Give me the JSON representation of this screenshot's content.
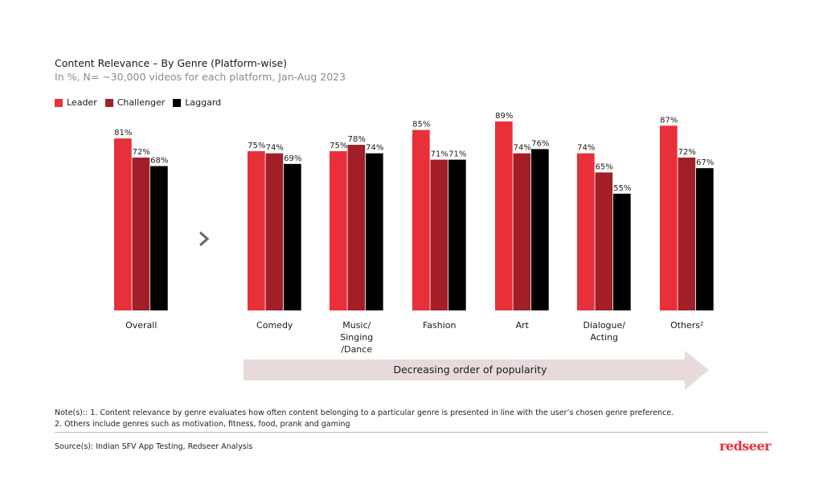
{
  "chart_data": {
    "type": "bar",
    "title": "Content Relevance – By Genre (Platform-wise)",
    "subtitle": "In %, N= ~30,000 videos for each platform, Jan-Aug 2023",
    "categories": [
      [
        "Overall"
      ],
      [
        "Comedy"
      ],
      [
        "Music/",
        "Singing",
        "/Dance"
      ],
      [
        "Fashion"
      ],
      [
        "Art"
      ],
      [
        "Dialogue/",
        "Acting"
      ],
      [
        "Others²"
      ]
    ],
    "series": [
      {
        "name": "Leader",
        "color": "#e8303a",
        "values": [
          81,
          75,
          75,
          85,
          89,
          74,
          87
        ]
      },
      {
        "name": "Challenger",
        "color": "#a21f27",
        "values": [
          72,
          74,
          78,
          71,
          74,
          65,
          72
        ]
      },
      {
        "name": "Laggard",
        "color": "#000000",
        "values": [
          68,
          69,
          74,
          71,
          76,
          55,
          67
        ]
      }
    ],
    "value_suffix": "%",
    "ylim": [
      0,
      100
    ],
    "grid": false,
    "legend_position": "top-left",
    "arrow_label": "Decreasing order of popularity",
    "arrow_color": "#e8dada",
    "separator_icon": "chevron-right-icon"
  },
  "notes": {
    "note1": "Note(s):: 1. Content relevance by genre evaluates how often content belonging to a particular genre is presented in line with the user’s chosen genre preference.",
    "note2": "2. Others include genres such as motivation, fitness, food, prank and gaming",
    "source": "Source(s): Indian SFV App Testing, Redseer Analysis"
  },
  "logo": "redseer"
}
